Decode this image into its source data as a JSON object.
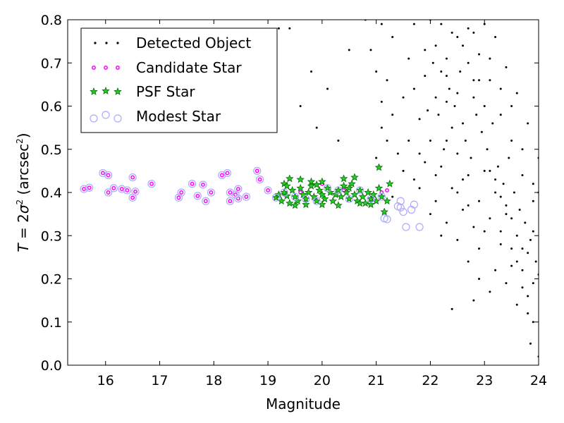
{
  "chart_data": {
    "type": "scatter",
    "xlabel": "Magnitude",
    "ylabel": "T = 2σ² (arcsec²)",
    "ylabel_parts": {
      "lhs": "T",
      "eq": " = 2",
      "sigma": "σ",
      "sup1": "2",
      "unit_open": " (arcsec",
      "sup2": "2",
      "unit_close": ")"
    },
    "xlim": [
      15.3,
      24
    ],
    "ylim": [
      0.0,
      0.8
    ],
    "xticks": [
      "16",
      "17",
      "18",
      "19",
      "20",
      "21",
      "22",
      "23",
      "24"
    ],
    "yticks": [
      "0.0",
      "0.1",
      "0.2",
      "0.3",
      "0.4",
      "0.5",
      "0.6",
      "0.7",
      "0.8"
    ],
    "legend_position": "upper-left",
    "legend": [
      "Detected Object",
      "Candidate Star",
      "PSF Star",
      "Modest Star"
    ],
    "colors": {
      "detected": "#000000",
      "candidate": "#ff00ff",
      "psf_fill": "#22cc22",
      "psf_edge": "#0a6a0a",
      "modest": "#aaaaff"
    },
    "series": [
      {
        "name": "Detected Object",
        "points": [
          [
            18.8,
            0.45
          ],
          [
            19.2,
            0.78
          ],
          [
            19.4,
            0.78
          ],
          [
            19.9,
            0.55
          ],
          [
            20.3,
            0.52
          ],
          [
            19.6,
            0.6
          ],
          [
            20.1,
            0.64
          ],
          [
            19.8,
            0.68
          ],
          [
            20.8,
            0.8
          ],
          [
            20.5,
            0.73
          ],
          [
            20.9,
            0.73
          ],
          [
            21.0,
            0.68
          ],
          [
            21.1,
            0.79
          ],
          [
            21.3,
            0.76
          ],
          [
            21.2,
            0.66
          ],
          [
            21.1,
            0.61
          ],
          [
            21.3,
            0.58
          ],
          [
            21.1,
            0.55
          ],
          [
            21.2,
            0.52
          ],
          [
            21.0,
            0.48
          ],
          [
            21.4,
            0.49
          ],
          [
            21.5,
            0.62
          ],
          [
            21.6,
            0.71
          ],
          [
            21.7,
            0.79
          ],
          [
            21.8,
            0.57
          ],
          [
            21.9,
            0.67
          ],
          [
            21.5,
            0.45
          ],
          [
            21.7,
            0.43
          ],
          [
            21.8,
            0.41
          ],
          [
            21.3,
            0.39
          ],
          [
            22.0,
            0.8
          ],
          [
            22.1,
            0.74
          ],
          [
            22.2,
            0.68
          ],
          [
            22.3,
            0.61
          ],
          [
            22.4,
            0.55
          ],
          [
            22.5,
            0.49
          ],
          [
            22.6,
            0.43
          ],
          [
            22.7,
            0.37
          ],
          [
            22.8,
            0.32
          ],
          [
            22.9,
            0.27
          ],
          [
            22.1,
            0.62
          ],
          [
            22.3,
            0.71
          ],
          [
            22.5,
            0.76
          ],
          [
            22.7,
            0.78
          ],
          [
            22.9,
            0.72
          ],
          [
            23.1,
            0.66
          ],
          [
            23.3,
            0.58
          ],
          [
            23.5,
            0.52
          ],
          [
            23.7,
            0.44
          ],
          [
            23.9,
            0.38
          ],
          [
            22.0,
            0.52
          ],
          [
            22.2,
            0.46
          ],
          [
            22.4,
            0.41
          ],
          [
            22.6,
            0.56
          ],
          [
            22.8,
            0.62
          ],
          [
            23.0,
            0.45
          ],
          [
            23.2,
            0.4
          ],
          [
            23.4,
            0.35
          ],
          [
            23.6,
            0.3
          ],
          [
            23.8,
            0.26
          ],
          [
            22.1,
            0.38
          ],
          [
            22.3,
            0.33
          ],
          [
            22.5,
            0.29
          ],
          [
            22.7,
            0.24
          ],
          [
            22.9,
            0.2
          ],
          [
            23.1,
            0.17
          ],
          [
            23.3,
            0.31
          ],
          [
            23.5,
            0.27
          ],
          [
            23.7,
            0.22
          ],
          [
            23.9,
            0.19
          ],
          [
            22.05,
            0.7
          ],
          [
            22.15,
            0.58
          ],
          [
            22.25,
            0.5
          ],
          [
            22.35,
            0.64
          ],
          [
            22.45,
            0.6
          ],
          [
            22.55,
            0.68
          ],
          [
            22.65,
            0.52
          ],
          [
            22.75,
            0.48
          ],
          [
            22.85,
            0.58
          ],
          [
            22.95,
            0.54
          ],
          [
            23.05,
            0.5
          ],
          [
            23.15,
            0.56
          ],
          [
            23.25,
            0.46
          ],
          [
            23.35,
            0.42
          ],
          [
            23.45,
            0.48
          ],
          [
            23.55,
            0.4
          ],
          [
            23.65,
            0.36
          ],
          [
            23.75,
            0.33
          ],
          [
            23.85,
            0.29
          ],
          [
            23.95,
            0.24
          ],
          [
            21.9,
            0.47
          ],
          [
            21.95,
            0.59
          ],
          [
            22.1,
            0.44
          ],
          [
            22.3,
            0.52
          ],
          [
            22.5,
            0.4
          ],
          [
            22.7,
            0.44
          ],
          [
            22.9,
            0.38
          ],
          [
            23.1,
            0.34
          ],
          [
            23.3,
            0.28
          ],
          [
            23.5,
            0.23
          ],
          [
            23.7,
            0.18
          ],
          [
            23.8,
            0.12
          ],
          [
            23.9,
            0.1
          ],
          [
            24.0,
            0.02
          ],
          [
            23.85,
            0.05
          ],
          [
            23.6,
            0.24
          ],
          [
            23.4,
            0.37
          ],
          [
            23.2,
            0.43
          ],
          [
            23.0,
            0.6
          ],
          [
            22.8,
            0.66
          ],
          [
            22.2,
            0.79
          ],
          [
            22.4,
            0.77
          ],
          [
            22.6,
            0.74
          ],
          [
            22.8,
            0.77
          ],
          [
            23.0,
            0.79
          ],
          [
            23.2,
            0.76
          ],
          [
            23.4,
            0.69
          ],
          [
            23.6,
            0.63
          ],
          [
            23.8,
            0.56
          ],
          [
            24.0,
            0.48
          ],
          [
            22.3,
            0.67
          ],
          [
            22.5,
            0.63
          ],
          [
            22.7,
            0.7
          ],
          [
            22.9,
            0.66
          ],
          [
            23.1,
            0.71
          ],
          [
            23.3,
            0.64
          ],
          [
            23.5,
            0.6
          ],
          [
            23.7,
            0.5
          ],
          [
            23.9,
            0.42
          ],
          [
            24.0,
            0.4
          ],
          [
            21.6,
            0.52
          ],
          [
            21.8,
            0.49
          ],
          [
            21.7,
            0.64
          ],
          [
            21.9,
            0.73
          ],
          [
            22.0,
            0.35
          ],
          [
            22.2,
            0.3
          ],
          [
            22.4,
            0.13
          ],
          [
            22.6,
            0.36
          ],
          [
            22.8,
            0.15
          ],
          [
            23.0,
            0.31
          ],
          [
            23.2,
            0.22
          ],
          [
            23.4,
            0.19
          ],
          [
            23.6,
            0.14
          ],
          [
            23.8,
            0.16
          ],
          [
            24.0,
            0.21
          ],
          [
            23.9,
            0.31
          ],
          [
            23.7,
            0.27
          ],
          [
            23.5,
            0.34
          ],
          [
            23.3,
            0.39
          ],
          [
            23.1,
            0.45
          ]
        ]
      },
      {
        "name": "Candidate Star",
        "points": [
          [
            15.6,
            0.408
          ],
          [
            15.7,
            0.411
          ],
          [
            15.95,
            0.445
          ],
          [
            16.05,
            0.44
          ],
          [
            16.05,
            0.4
          ],
          [
            16.15,
            0.41
          ],
          [
            16.3,
            0.408
          ],
          [
            16.4,
            0.405
          ],
          [
            16.5,
            0.388
          ],
          [
            16.5,
            0.435
          ],
          [
            16.55,
            0.402
          ],
          [
            16.85,
            0.42
          ],
          [
            17.35,
            0.388
          ],
          [
            17.4,
            0.4
          ],
          [
            17.6,
            0.42
          ],
          [
            17.7,
            0.392
          ],
          [
            17.8,
            0.418
          ],
          [
            17.85,
            0.38
          ],
          [
            17.95,
            0.4
          ],
          [
            18.15,
            0.44
          ],
          [
            18.25,
            0.445
          ],
          [
            18.3,
            0.4
          ],
          [
            18.3,
            0.38
          ],
          [
            18.4,
            0.395
          ],
          [
            18.45,
            0.408
          ],
          [
            18.45,
            0.386
          ],
          [
            18.6,
            0.39
          ],
          [
            18.8,
            0.45
          ],
          [
            18.85,
            0.43
          ],
          [
            19.0,
            0.405
          ],
          [
            19.3,
            0.395
          ],
          [
            19.6,
            0.4
          ],
          [
            20.0,
            0.42
          ],
          [
            20.4,
            0.405
          ],
          [
            20.9,
            0.385
          ],
          [
            21.1,
            0.4
          ],
          [
            21.2,
            0.405
          ],
          [
            21.0,
            0.38
          ]
        ]
      },
      {
        "name": "PSF Star",
        "points": [
          [
            19.15,
            0.388
          ],
          [
            19.2,
            0.395
          ],
          [
            19.25,
            0.38
          ],
          [
            19.3,
            0.4
          ],
          [
            19.35,
            0.392
          ],
          [
            19.4,
            0.375
          ],
          [
            19.45,
            0.405
          ],
          [
            19.5,
            0.39
          ],
          [
            19.55,
            0.38
          ],
          [
            19.6,
            0.41
          ],
          [
            19.65,
            0.395
          ],
          [
            19.7,
            0.385
          ],
          [
            19.75,
            0.4
          ],
          [
            19.8,
            0.415
          ],
          [
            19.85,
            0.39
          ],
          [
            19.9,
            0.38
          ],
          [
            19.95,
            0.405
          ],
          [
            20.0,
            0.395
          ],
          [
            20.05,
            0.385
          ],
          [
            20.1,
            0.41
          ],
          [
            20.15,
            0.4
          ],
          [
            20.2,
            0.38
          ],
          [
            20.25,
            0.395
          ],
          [
            20.3,
            0.405
          ],
          [
            20.35,
            0.39
          ],
          [
            20.4,
            0.415
          ],
          [
            20.45,
            0.4
          ],
          [
            20.5,
            0.385
          ],
          [
            20.55,
            0.42
          ],
          [
            20.6,
            0.395
          ],
          [
            20.65,
            0.38
          ],
          [
            20.7,
            0.405
          ],
          [
            20.75,
            0.39
          ],
          [
            20.8,
            0.375
          ],
          [
            20.85,
            0.4
          ],
          [
            20.9,
            0.385
          ],
          [
            20.95,
            0.395
          ],
          [
            21.0,
            0.38
          ],
          [
            21.05,
            0.41
          ],
          [
            21.1,
            0.39
          ],
          [
            19.3,
            0.42
          ],
          [
            19.4,
            0.432
          ],
          [
            19.6,
            0.43
          ],
          [
            19.8,
            0.425
          ],
          [
            20.0,
            0.425
          ],
          [
            20.4,
            0.432
          ],
          [
            20.6,
            0.435
          ],
          [
            21.05,
            0.458
          ],
          [
            21.15,
            0.355
          ],
          [
            21.25,
            0.42
          ],
          [
            19.5,
            0.37
          ],
          [
            20.3,
            0.37
          ],
          [
            20.7,
            0.375
          ],
          [
            19.35,
            0.415
          ],
          [
            19.9,
            0.418
          ],
          [
            20.5,
            0.41
          ],
          [
            21.2,
            0.38
          ],
          [
            20.0,
            0.372
          ],
          [
            19.7,
            0.372
          ],
          [
            20.9,
            0.372
          ]
        ]
      },
      {
        "name": "Modest Star",
        "points": [
          [
            15.6,
            0.408
          ],
          [
            15.7,
            0.411
          ],
          [
            15.95,
            0.445
          ],
          [
            16.05,
            0.44
          ],
          [
            16.05,
            0.4
          ],
          [
            16.15,
            0.41
          ],
          [
            16.3,
            0.408
          ],
          [
            16.4,
            0.405
          ],
          [
            16.5,
            0.388
          ],
          [
            16.5,
            0.435
          ],
          [
            16.55,
            0.402
          ],
          [
            16.85,
            0.42
          ],
          [
            17.35,
            0.388
          ],
          [
            17.4,
            0.4
          ],
          [
            17.6,
            0.42
          ],
          [
            17.7,
            0.392
          ],
          [
            17.8,
            0.418
          ],
          [
            17.85,
            0.38
          ],
          [
            17.95,
            0.4
          ],
          [
            18.15,
            0.44
          ],
          [
            18.25,
            0.445
          ],
          [
            18.3,
            0.4
          ],
          [
            18.3,
            0.38
          ],
          [
            18.4,
            0.395
          ],
          [
            18.45,
            0.408
          ],
          [
            18.45,
            0.386
          ],
          [
            18.6,
            0.39
          ],
          [
            18.8,
            0.45
          ],
          [
            18.85,
            0.43
          ],
          [
            19.0,
            0.405
          ],
          [
            19.15,
            0.388
          ],
          [
            19.3,
            0.4
          ],
          [
            19.5,
            0.39
          ],
          [
            19.7,
            0.385
          ],
          [
            19.9,
            0.38
          ],
          [
            20.1,
            0.41
          ],
          [
            20.3,
            0.405
          ],
          [
            20.5,
            0.385
          ],
          [
            20.7,
            0.405
          ],
          [
            20.9,
            0.385
          ],
          [
            21.1,
            0.39
          ],
          [
            21.15,
            0.34
          ],
          [
            21.2,
            0.338
          ],
          [
            21.45,
            0.365
          ],
          [
            21.5,
            0.355
          ],
          [
            21.55,
            0.32
          ],
          [
            21.65,
            0.36
          ],
          [
            21.7,
            0.372
          ],
          [
            21.8,
            0.32
          ],
          [
            21.4,
            0.368
          ],
          [
            21.45,
            0.38
          ]
        ]
      }
    ]
  }
}
